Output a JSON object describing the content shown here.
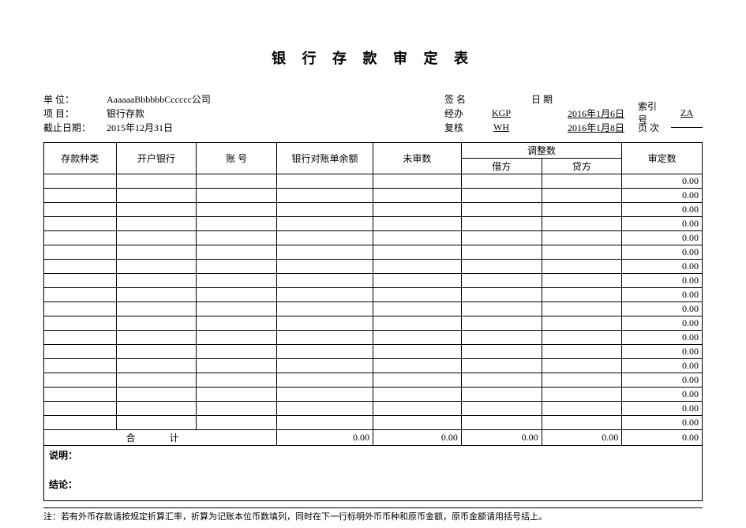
{
  "title": "银 行 存 款 审 定 表",
  "header": {
    "unit_label": "单    位：",
    "unit_value": "AaaaaaBbbbbbCccccc公司",
    "project_label": "项    目：",
    "project_value": "银行存款",
    "cutoff_label": "截止日期：",
    "cutoff_value": "2015年12月31日",
    "sign_label": "签  名",
    "date_label": "日  期",
    "handler_label": "经办",
    "handler_value": "KGP",
    "handler_date": "2016年1月6日",
    "reviewer_label": "复核",
    "reviewer_value": "WH",
    "reviewer_date": "2016年1月8日",
    "index_label": "索引号",
    "index_value": "ZA",
    "page_label": "页  次"
  },
  "columns": {
    "type": "存款种类",
    "bank": "开户银行",
    "account": "账    号",
    "balance": "银行对账单余额",
    "unaudited": "未审数",
    "adjust": "调整数",
    "debit": "借方",
    "credit": "贷方",
    "final": "审定数"
  },
  "zero": "0.00",
  "total_label": "合    计",
  "notes": {
    "desc_label": "说明：",
    "concl_label": "结论："
  },
  "footer": "注：若有外币存款请按规定折算汇率，折算为记账本位币数填列，同时在下一行标明外币币种和原币金额，原币金额请用括号括上。"
}
